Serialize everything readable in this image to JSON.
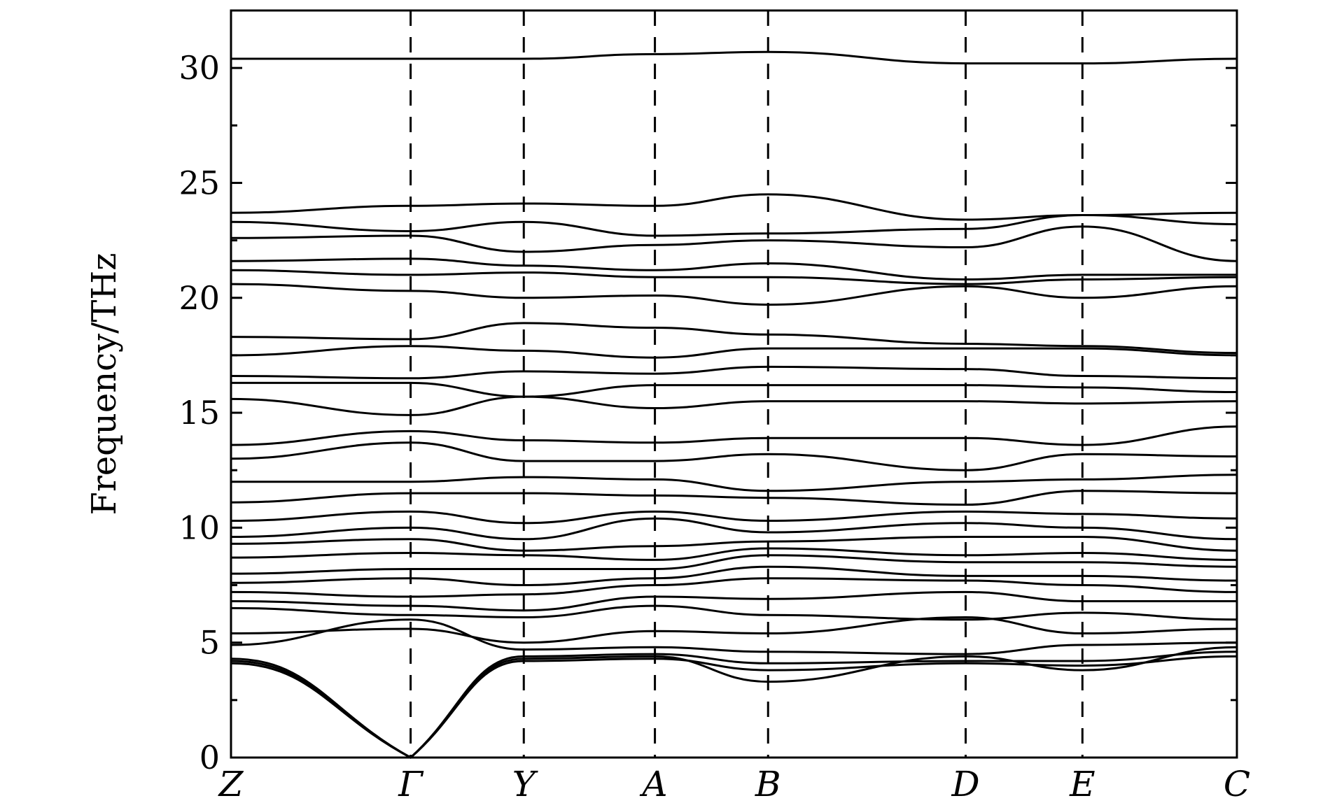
{
  "chart_data": {
    "type": "line",
    "title": "",
    "xlabel": "",
    "ylabel": "Frequency/THz",
    "ylim": [
      0,
      32.5
    ],
    "y_ticks": [
      "0",
      "5",
      "10",
      "15",
      "20",
      "25",
      "30"
    ],
    "y_tick_values": [
      0,
      5,
      10,
      15,
      20,
      25,
      30
    ],
    "grid": false,
    "legend": "none",
    "line_color": "#000000",
    "high_symmetry_points": [
      {
        "label": "Z",
        "x": 0.0
      },
      {
        "label": "Γ",
        "x": 1.0
      },
      {
        "label": "Y",
        "x": 1.63
      },
      {
        "label": "A",
        "x": 2.36
      },
      {
        "label": "B",
        "x": 2.99
      },
      {
        "label": "D",
        "x": 4.09
      },
      {
        "label": "E",
        "x": 4.74
      },
      {
        "label": "C",
        "x": 5.6
      }
    ],
    "dashed_lines_at": [
      1.0,
      1.63,
      2.36,
      2.99,
      4.09,
      4.74
    ],
    "series": [
      {
        "values": [
          30.4,
          30.4,
          30.4,
          30.6,
          30.7,
          30.2,
          30.2,
          30.4
        ]
      },
      {
        "values": [
          23.7,
          24.0,
          24.1,
          24.0,
          24.5,
          23.4,
          23.6,
          23.7
        ]
      },
      {
        "values": [
          23.3,
          22.9,
          23.3,
          22.7,
          22.8,
          23.0,
          23.6,
          23.2
        ]
      },
      {
        "values": [
          22.6,
          22.7,
          22.0,
          22.3,
          22.5,
          22.2,
          23.1,
          21.6
        ]
      },
      {
        "values": [
          21.6,
          21.7,
          21.4,
          21.2,
          21.5,
          20.8,
          21.0,
          21.0
        ]
      },
      {
        "values": [
          21.2,
          21.0,
          21.1,
          20.9,
          20.9,
          20.6,
          20.8,
          20.9
        ]
      },
      {
        "values": [
          20.6,
          20.3,
          20.0,
          20.1,
          19.7,
          20.5,
          20.0,
          20.5
        ]
      },
      {
        "values": [
          18.3,
          18.2,
          18.9,
          18.7,
          18.4,
          18.0,
          17.9,
          17.6
        ]
      },
      {
        "values": [
          17.5,
          17.9,
          17.7,
          17.4,
          17.8,
          17.8,
          17.8,
          17.5
        ]
      },
      {
        "values": [
          16.6,
          16.5,
          16.8,
          16.7,
          17.0,
          16.9,
          16.6,
          16.5
        ]
      },
      {
        "values": [
          16.3,
          16.3,
          15.7,
          16.2,
          16.2,
          16.2,
          16.1,
          15.9
        ]
      },
      {
        "values": [
          15.6,
          14.9,
          15.7,
          15.2,
          15.5,
          15.5,
          15.4,
          15.5
        ]
      },
      {
        "values": [
          13.6,
          14.2,
          13.8,
          13.7,
          13.9,
          13.9,
          13.6,
          14.4
        ]
      },
      {
        "values": [
          13.0,
          13.7,
          12.9,
          12.9,
          13.2,
          12.5,
          13.2,
          13.1
        ]
      },
      {
        "values": [
          12.0,
          12.0,
          12.2,
          12.1,
          11.6,
          12.0,
          12.1,
          12.3
        ]
      },
      {
        "values": [
          11.1,
          11.5,
          11.5,
          11.4,
          11.3,
          11.0,
          11.6,
          11.5
        ]
      },
      {
        "values": [
          10.3,
          10.7,
          10.2,
          10.7,
          10.3,
          10.7,
          10.6,
          10.4
        ]
      },
      {
        "values": [
          9.6,
          10.0,
          9.5,
          10.4,
          9.8,
          10.2,
          10.0,
          9.5
        ]
      },
      {
        "values": [
          9.3,
          9.5,
          9.0,
          9.2,
          9.4,
          9.6,
          9.6,
          9.0
        ]
      },
      {
        "values": [
          8.7,
          8.9,
          8.8,
          8.6,
          9.1,
          8.8,
          8.9,
          8.6
        ]
      },
      {
        "values": [
          8.0,
          8.2,
          8.2,
          8.2,
          8.8,
          8.5,
          8.5,
          8.3
        ]
      },
      {
        "values": [
          7.6,
          7.8,
          7.5,
          7.8,
          8.3,
          7.9,
          7.9,
          7.7
        ]
      },
      {
        "values": [
          7.2,
          7.0,
          7.1,
          7.5,
          7.8,
          7.7,
          7.5,
          7.2
        ]
      },
      {
        "values": [
          6.8,
          6.6,
          6.4,
          7.0,
          6.9,
          7.2,
          6.8,
          6.8
        ]
      },
      {
        "values": [
          6.5,
          6.2,
          6.1,
          6.6,
          6.2,
          6.0,
          6.3,
          6.0
        ]
      },
      {
        "values": [
          5.4,
          5.6,
          5.0,
          5.5,
          5.4,
          6.1,
          5.4,
          5.6
        ]
      },
      {
        "values": [
          4.9,
          6.0,
          4.7,
          4.8,
          4.6,
          4.5,
          4.9,
          5.0
        ]
      },
      {
        "values": [
          4.3,
          0.0,
          4.3,
          4.4,
          3.3,
          4.4,
          3.8,
          4.8
        ]
      },
      {
        "values": [
          4.2,
          0.0,
          4.2,
          4.3,
          3.8,
          4.1,
          4.0,
          4.4
        ]
      },
      {
        "values": [
          4.1,
          0.0,
          4.4,
          4.5,
          4.1,
          4.2,
          4.2,
          4.6
        ]
      }
    ]
  }
}
